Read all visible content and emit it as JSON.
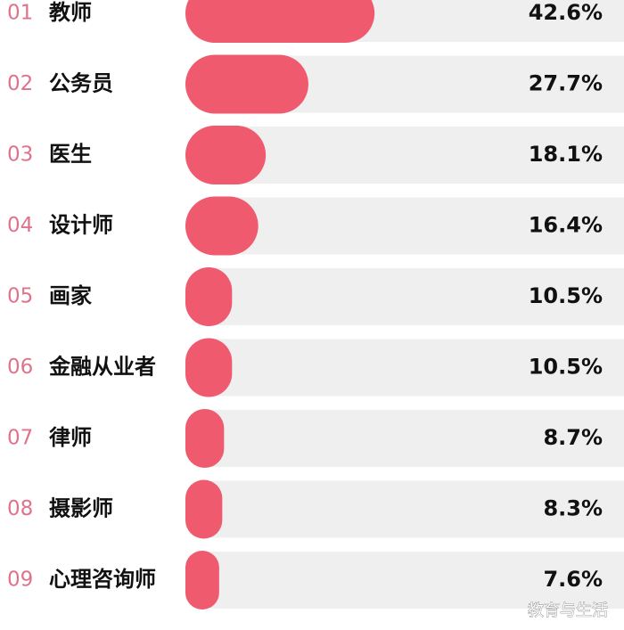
{
  "chart_data": {
    "type": "bar",
    "orientation": "horizontal",
    "ranks": [
      "01",
      "02",
      "03",
      "04",
      "05",
      "06",
      "07",
      "08",
      "09"
    ],
    "categories": [
      "教师",
      "公务员",
      "医生",
      "设计师",
      "画家",
      "金融从业者",
      "律师",
      "摄影师",
      "心理咨询师"
    ],
    "values": [
      42.6,
      27.7,
      18.1,
      16.4,
      10.5,
      10.5,
      8.7,
      8.3,
      7.6
    ],
    "value_labels": [
      "42.6%",
      "27.7%",
      "18.1%",
      "16.4%",
      "10.5%",
      "10.5%",
      "8.7%",
      "8.3%",
      "7.6%"
    ],
    "color": "#ef5a6e",
    "track_color": "#efefef",
    "watermark": "教育与生活"
  }
}
